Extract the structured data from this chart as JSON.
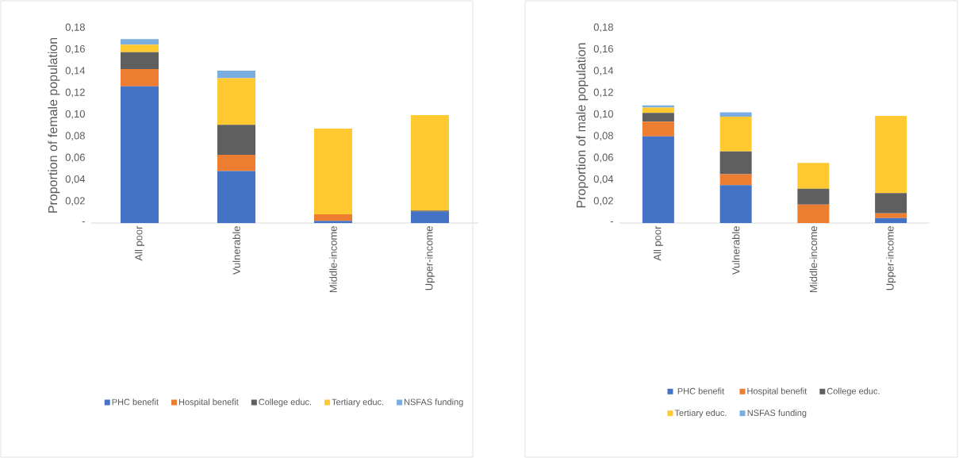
{
  "chart_data": [
    {
      "type": "bar",
      "stacked": true,
      "ylabel": "Proportion of female population",
      "categories": [
        "All poor",
        "Vulnerable",
        "Middle-income",
        "Upper-income"
      ],
      "series": [
        {
          "name": "PHC benefit",
          "color": "#4472c4",
          "values": [
            0.126,
            0.048,
            0.002,
            0.0105
          ]
        },
        {
          "name": "Hospital benefit",
          "color": "#ed7d31",
          "values": [
            0.016,
            0.015,
            0.006,
            0
          ]
        },
        {
          "name": "College educ.",
          "color": "#5f5f5f",
          "values": [
            0.0155,
            0.0275,
            0,
            0.001
          ]
        },
        {
          "name": "Tertiary educ.",
          "color": "#ffc932",
          "values": [
            0.007,
            0.043,
            0.079,
            0.088
          ]
        },
        {
          "name": "NSFAS funding",
          "color": "#7aaee0",
          "values": [
            0.005,
            0.007,
            0,
            0
          ]
        }
      ],
      "ylim": [
        0,
        0.18
      ],
      "yticks": [
        {
          "value": 0,
          "label": "-"
        },
        {
          "value": 0.02,
          "label": "0,02"
        },
        {
          "value": 0.04,
          "label": "0,04"
        },
        {
          "value": 0.06,
          "label": "0,06"
        },
        {
          "value": 0.08,
          "label": "0,08"
        },
        {
          "value": 0.1,
          "label": "0,10"
        },
        {
          "value": 0.12,
          "label": "0,12"
        },
        {
          "value": 0.14,
          "label": "0,14"
        },
        {
          "value": 0.16,
          "label": "0,16"
        },
        {
          "value": 0.18,
          "label": "0,18"
        }
      ],
      "legend": "bottom"
    },
    {
      "type": "bar",
      "stacked": true,
      "ylabel": "Proportion of male population",
      "categories": [
        "All poor",
        "Vulnerable",
        "Middle-income",
        "Upper-income"
      ],
      "series": [
        {
          "name": "PHC benefit",
          "color": "#4472c4",
          "values": [
            0.08,
            0.035,
            0,
            0.0046
          ]
        },
        {
          "name": "Hospital benefit",
          "color": "#ed7d31",
          "values": [
            0.0135,
            0.01,
            0.017,
            0.0044
          ]
        },
        {
          "name": "College educ.",
          "color": "#5f5f5f",
          "values": [
            0.008,
            0.021,
            0.0147,
            0.0186
          ]
        },
        {
          "name": "Tertiary educ.",
          "color": "#ffc932",
          "values": [
            0.005,
            0.032,
            0.0237,
            0.0712
          ]
        },
        {
          "name": "NSFAS funding",
          "color": "#7aaee0",
          "values": [
            0.002,
            0.004,
            0,
            0
          ]
        }
      ],
      "ylim": [
        0,
        0.18
      ],
      "yticks": [
        {
          "value": 0,
          "label": "-"
        },
        {
          "value": 0.02,
          "label": "0,02"
        },
        {
          "value": 0.04,
          "label": "0,04"
        },
        {
          "value": 0.06,
          "label": "0,06"
        },
        {
          "value": 0.08,
          "label": "0,08"
        },
        {
          "value": 0.1,
          "label": "0,10"
        },
        {
          "value": 0.12,
          "label": "0,12"
        },
        {
          "value": 0.14,
          "label": "0,14"
        },
        {
          "value": 0.16,
          "label": "0,16"
        },
        {
          "value": 0.18,
          "label": "0,18"
        }
      ],
      "legend": "bottom"
    }
  ]
}
